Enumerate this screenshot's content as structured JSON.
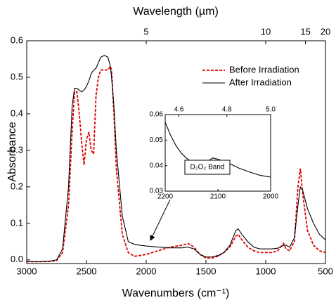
{
  "chart_data": [
    {
      "type": "line",
      "xlabel": "Wavenumbers (cm⁻¹)",
      "ylabel": "Absorbance",
      "x2label": "Wavelength (µm)",
      "xlim": [
        3000,
        500
      ],
      "ylim": [
        -0.01,
        0.6
      ],
      "xticks": [
        3000,
        2500,
        2000,
        1500,
        1000,
        500
      ],
      "yticks": [
        {
          "value": 0,
          "label": "0.0"
        },
        0.1,
        0.2,
        0.3,
        0.4,
        0.5,
        0.6
      ],
      "x2ticks": [
        {
          "value": 2000,
          "label": "5"
        },
        {
          "value": 1000,
          "label": "10"
        },
        {
          "value": 667,
          "label": "15"
        },
        {
          "value": 500,
          "label": "20"
        }
      ],
      "legend": "upper right",
      "x": [
        3000,
        2900,
        2800,
        2750,
        2700,
        2650,
        2620,
        2600,
        2580,
        2560,
        2540,
        2520,
        2500,
        2480,
        2460,
        2440,
        2420,
        2400,
        2380,
        2350,
        2320,
        2300,
        2290,
        2270,
        2250,
        2200,
        2150,
        2100,
        2050,
        2000,
        1900,
        1800,
        1700,
        1650,
        1600,
        1550,
        1500,
        1450,
        1400,
        1350,
        1300,
        1250,
        1230,
        1200,
        1150,
        1100,
        1050,
        1000,
        950,
        900,
        850,
        830,
        800,
        760,
        730,
        710,
        690,
        650,
        600,
        550,
        500
      ],
      "series": [
        {
          "name": "Before Irradiation",
          "color": "#e00000",
          "dash": true,
          "values": [
            -0.005,
            -0.005,
            -0.004,
            -0.002,
            0.02,
            0.15,
            0.35,
            0.46,
            0.46,
            0.4,
            0.32,
            0.26,
            0.33,
            0.35,
            0.3,
            0.29,
            0.45,
            0.5,
            0.52,
            0.52,
            0.52,
            0.53,
            0.52,
            0.4,
            0.25,
            0.07,
            0.02,
            0.01,
            0.012,
            0.015,
            0.025,
            0.035,
            0.04,
            0.045,
            0.035,
            0.015,
            0.005,
            0.005,
            0.01,
            0.02,
            0.035,
            0.065,
            0.07,
            0.055,
            0.035,
            0.025,
            0.02,
            0.02,
            0.02,
            0.025,
            0.045,
            0.03,
            0.025,
            0.05,
            0.2,
            0.25,
            0.18,
            0.08,
            0.04,
            0.025,
            0.02
          ]
        },
        {
          "name": "After Irradiation",
          "color": "#000000",
          "dash": false,
          "values": [
            -0.005,
            -0.005,
            -0.003,
            0.0,
            0.03,
            0.2,
            0.42,
            0.47,
            0.47,
            0.465,
            0.46,
            0.465,
            0.475,
            0.49,
            0.51,
            0.52,
            0.525,
            0.54,
            0.555,
            0.56,
            0.555,
            0.53,
            0.5,
            0.42,
            0.3,
            0.12,
            0.05,
            0.043,
            0.04,
            0.038,
            0.035,
            0.033,
            0.033,
            0.035,
            0.03,
            0.015,
            0.008,
            0.008,
            0.012,
            0.02,
            0.04,
            0.08,
            0.085,
            0.07,
            0.05,
            0.035,
            0.03,
            0.03,
            0.03,
            0.032,
            0.04,
            0.04,
            0.035,
            0.06,
            0.15,
            0.2,
            0.19,
            0.14,
            0.1,
            0.07,
            0.055
          ]
        }
      ]
    },
    {
      "type": "line",
      "annotation": "D₂O₂ Band",
      "xlim": [
        2200,
        2000
      ],
      "ylim": [
        0.03,
        0.06
      ],
      "xticks": [
        2200,
        2100,
        2000
      ],
      "yticks": [
        0.03,
        0.04,
        0.05,
        0.06
      ],
      "x2ticks": [
        {
          "value": 2174,
          "label": "4.6"
        },
        {
          "value": 2083,
          "label": "4.8"
        },
        {
          "value": 2000,
          "label": "5.0"
        }
      ],
      "x": [
        2200,
        2190,
        2180,
        2170,
        2160,
        2150,
        2140,
        2130,
        2120,
        2110,
        2100,
        2080,
        2060,
        2040,
        2020,
        2000
      ],
      "series": [
        {
          "color": "#000000",
          "dash": false,
          "values": [
            0.057,
            0.052,
            0.048,
            0.045,
            0.043,
            0.0415,
            0.0405,
            0.0403,
            0.0415,
            0.043,
            0.0425,
            0.041,
            0.039,
            0.0375,
            0.0362,
            0.0355
          ]
        }
      ]
    }
  ]
}
